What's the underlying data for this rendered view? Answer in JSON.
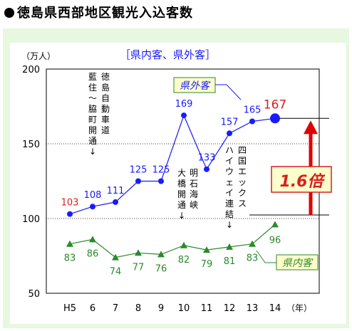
{
  "page": {
    "title": "徳島県西部地区観光入込客数"
  },
  "chart_data": {
    "type": "line",
    "title": "徳島県西部地区観光入込客数",
    "subtitle": "［県内客、県外客］",
    "ylabel": "（万人）",
    "xlabel_unit": "（年）",
    "ylim": [
      50,
      200
    ],
    "yticks": [
      50,
      100,
      150,
      200
    ],
    "categories": [
      "H5",
      "6",
      "7",
      "8",
      "9",
      "10",
      "11",
      "12",
      "13",
      "14"
    ],
    "series": [
      {
        "name": "県外客",
        "color": "#1a1aff",
        "marker": "circle",
        "values": [
          103,
          108,
          111,
          125,
          125,
          169,
          133,
          157,
          165,
          167
        ]
      },
      {
        "name": "県内客",
        "color": "#2a8a2a",
        "marker": "triangle",
        "values": [
          83,
          86,
          74,
          77,
          76,
          82,
          79,
          81,
          83,
          96
        ]
      }
    ],
    "grid": "dotted at 150 and 100",
    "annotations": [
      {
        "text": "徳島自動車道",
        "direction": "vertical",
        "at": "6"
      },
      {
        "text": "藍住～脇町開通↓",
        "direction": "vertical",
        "at": "6"
      },
      {
        "text": "明石海峡",
        "direction": "vertical",
        "at": "10"
      },
      {
        "text": "大橋開通↓",
        "direction": "vertical",
        "at": "10"
      },
      {
        "text": "四国エックス",
        "direction": "vertical",
        "at": "12"
      },
      {
        "text": "ハイウェイ連結↓",
        "direction": "vertical",
        "at": "12"
      },
      {
        "text": "1.6倍",
        "style": "callout"
      }
    ],
    "colors": {
      "outer_value": "#d62020",
      "arrow": "#e00000",
      "callout_bg": "#ffffcc",
      "panel_bg": "#e8f7e0"
    }
  }
}
